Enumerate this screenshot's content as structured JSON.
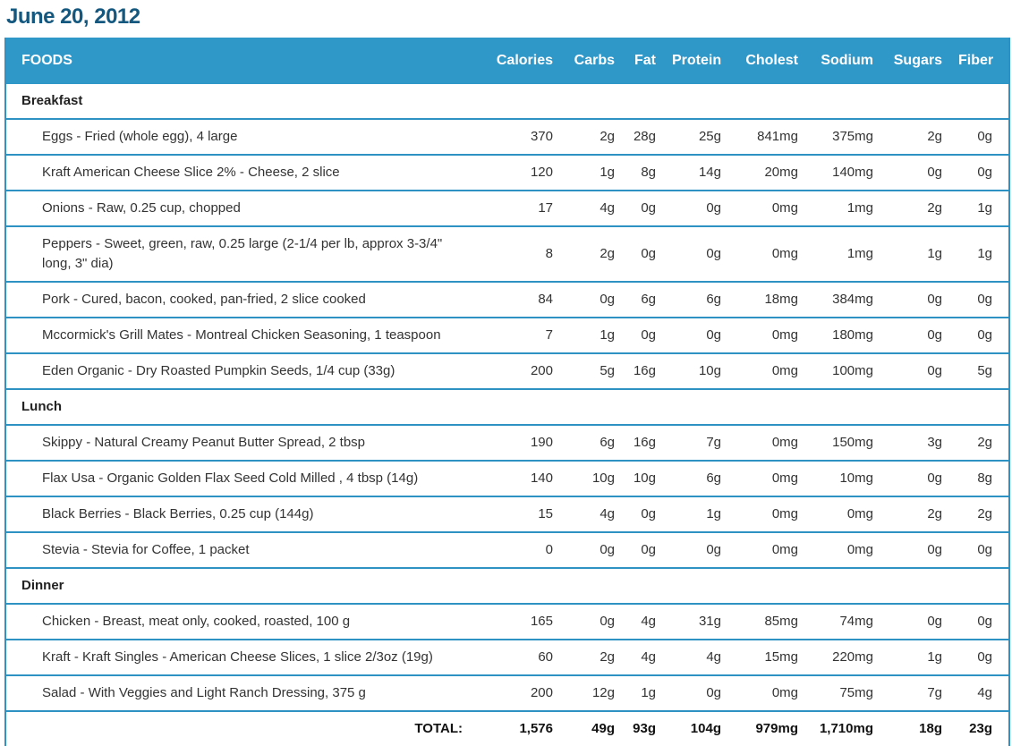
{
  "page": {
    "title": "June 20, 2012"
  },
  "colors": {
    "header_bg": "#3097C9",
    "line": "#2E93C2",
    "title": "#15587F"
  },
  "table": {
    "headers": [
      "FOODS",
      "Calories",
      "Carbs",
      "Fat",
      "Protein",
      "Cholest",
      "Sodium",
      "Sugars",
      "Fiber"
    ],
    "sections": [
      {
        "name": "Breakfast",
        "items": [
          {
            "food": "Eggs - Fried (whole egg), 4 large",
            "values": [
              "370",
              "2g",
              "28g",
              "25g",
              "841mg",
              "375mg",
              "2g",
              "0g"
            ]
          },
          {
            "food": "Kraft American Cheese Slice 2% - Cheese, 2 slice",
            "values": [
              "120",
              "1g",
              "8g",
              "14g",
              "20mg",
              "140mg",
              "0g",
              "0g"
            ]
          },
          {
            "food": "Onions - Raw, 0.25 cup, chopped",
            "values": [
              "17",
              "4g",
              "0g",
              "0g",
              "0mg",
              "1mg",
              "2g",
              "1g"
            ]
          },
          {
            "food": "Peppers - Sweet, green, raw, 0.25 large (2-1/4 per lb, approx 3-3/4\" long, 3\" dia)",
            "values": [
              "8",
              "2g",
              "0g",
              "0g",
              "0mg",
              "1mg",
              "1g",
              "1g"
            ]
          },
          {
            "food": "Pork - Cured, bacon, cooked, pan-fried, 2 slice cooked",
            "values": [
              "84",
              "0g",
              "6g",
              "6g",
              "18mg",
              "384mg",
              "0g",
              "0g"
            ]
          },
          {
            "food": "Mccormick's Grill Mates - Montreal Chicken Seasoning, 1 teaspoon",
            "values": [
              "7",
              "1g",
              "0g",
              "0g",
              "0mg",
              "180mg",
              "0g",
              "0g"
            ]
          },
          {
            "food": "Eden Organic - Dry Roasted Pumpkin Seeds, 1/4 cup (33g)",
            "values": [
              "200",
              "5g",
              "16g",
              "10g",
              "0mg",
              "100mg",
              "0g",
              "5g"
            ]
          }
        ]
      },
      {
        "name": "Lunch",
        "items": [
          {
            "food": "Skippy - Natural Creamy Peanut Butter Spread, 2 tbsp",
            "values": [
              "190",
              "6g",
              "16g",
              "7g",
              "0mg",
              "150mg",
              "3g",
              "2g"
            ]
          },
          {
            "food": "Flax Usa - Organic Golden Flax Seed Cold Milled , 4 tbsp (14g)",
            "values": [
              "140",
              "10g",
              "10g",
              "6g",
              "0mg",
              "10mg",
              "0g",
              "8g"
            ]
          },
          {
            "food": "Black Berries - Black Berries, 0.25 cup (144g)",
            "values": [
              "15",
              "4g",
              "0g",
              "1g",
              "0mg",
              "0mg",
              "2g",
              "2g"
            ]
          },
          {
            "food": "Stevia - Stevia for Coffee, 1 packet",
            "values": [
              "0",
              "0g",
              "0g",
              "0g",
              "0mg",
              "0mg",
              "0g",
              "0g"
            ]
          }
        ]
      },
      {
        "name": "Dinner",
        "items": [
          {
            "food": "Chicken - Breast, meat only, cooked, roasted, 100 g",
            "values": [
              "165",
              "0g",
              "4g",
              "31g",
              "85mg",
              "74mg",
              "0g",
              "0g"
            ]
          },
          {
            "food": "Kraft - Kraft Singles - American Cheese Slices, 1 slice 2/3oz (19g)",
            "values": [
              "60",
              "2g",
              "4g",
              "4g",
              "15mg",
              "220mg",
              "1g",
              "0g"
            ]
          },
          {
            "food": "Salad - With Veggies and Light Ranch Dressing, 375 g",
            "values": [
              "200",
              "12g",
              "1g",
              "0g",
              "0mg",
              "75mg",
              "7g",
              "4g"
            ]
          }
        ]
      }
    ],
    "total": {
      "label": "TOTAL:",
      "values": [
        "1,576",
        "49g",
        "93g",
        "104g",
        "979mg",
        "1,710mg",
        "18g",
        "23g"
      ]
    }
  }
}
